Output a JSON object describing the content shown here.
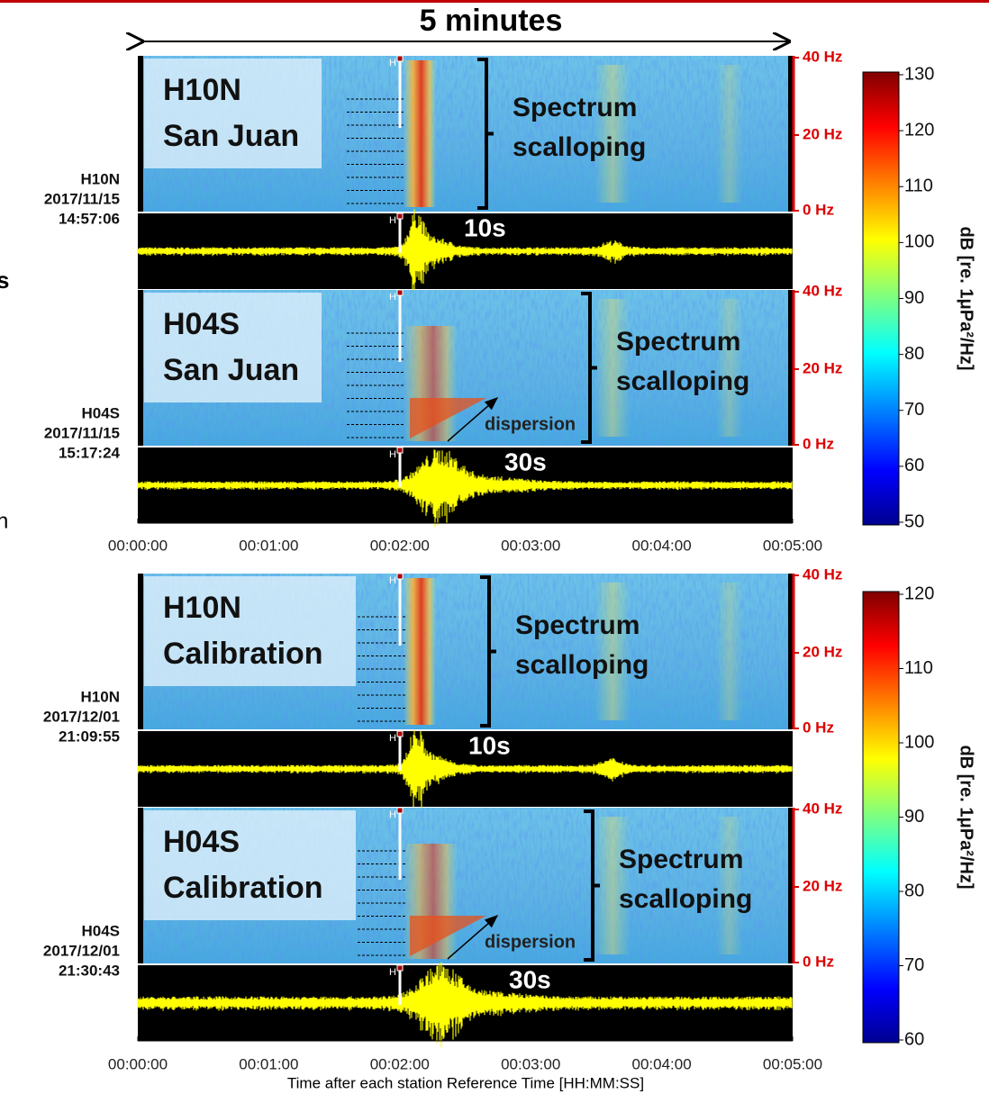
{
  "title": "5 minutes",
  "edge_text": [
    "s",
    "n"
  ],
  "x_axis_label": "Time after each station Reference Time [HH:MM:SS]",
  "groups": [
    {
      "time_ticks": [
        "00:00:00",
        "00:01:00",
        "00:02:00",
        "00:03:00",
        "00:04:00",
        "00:05:00"
      ],
      "colorbar": {
        "ticks": [
          130,
          120,
          110,
          100,
          90,
          80,
          70,
          60,
          50
        ],
        "label": "dB [re. 1μPa²/Hz]"
      },
      "panels": [
        {
          "box": [
            "H10N",
            "San Juan"
          ],
          "station": "H10N",
          "date": "2017/11/15",
          "time": "14:57:06",
          "freq_ticks": [
            "40 Hz",
            "20 Hz",
            "0 Hz"
          ],
          "bracket": [
            "Spectrum",
            "scalloping"
          ],
          "duration": "10s",
          "markers": [
            "H",
            "H"
          ]
        },
        {
          "box": [
            "H04S",
            "San Juan"
          ],
          "station": "H04S",
          "date": "2017/11/15",
          "time": "15:17:24",
          "freq_ticks": [
            "40 Hz",
            "20 Hz",
            "0 Hz"
          ],
          "bracket": [
            "Spectrum",
            "scalloping"
          ],
          "duration": "30s",
          "markers": [
            "H",
            "H"
          ],
          "dispersion": "dispersion"
        }
      ]
    },
    {
      "time_ticks": [
        "00:00:00",
        "00:01:00",
        "00:02:00",
        "00:03:00",
        "00:04:00",
        "00:05:00"
      ],
      "colorbar": {
        "ticks": [
          120,
          110,
          100,
          90,
          80,
          70,
          60
        ],
        "label": "dB [re. 1μPa²/Hz]"
      },
      "panels": [
        {
          "box": [
            "H10N",
            "Calibration"
          ],
          "station": "H10N",
          "date": "2017/12/01",
          "time": "21:09:55",
          "freq_ticks": [
            "40 Hz",
            "20 Hz",
            "0 Hz"
          ],
          "bracket": [
            "Spectrum",
            "scalloping"
          ],
          "duration": "10s",
          "markers": [
            "H",
            "H"
          ]
        },
        {
          "box": [
            "H04S",
            "Calibration"
          ],
          "station": "H04S",
          "date": "2017/12/01",
          "time": "21:30:43",
          "freq_ticks": [
            "40 Hz",
            "20 Hz",
            "0 Hz"
          ],
          "bracket": [
            "Spectrum",
            "scalloping"
          ],
          "duration": "30s",
          "markers": [
            "H",
            "H"
          ],
          "dispersion": "dispersion"
        }
      ]
    }
  ]
}
